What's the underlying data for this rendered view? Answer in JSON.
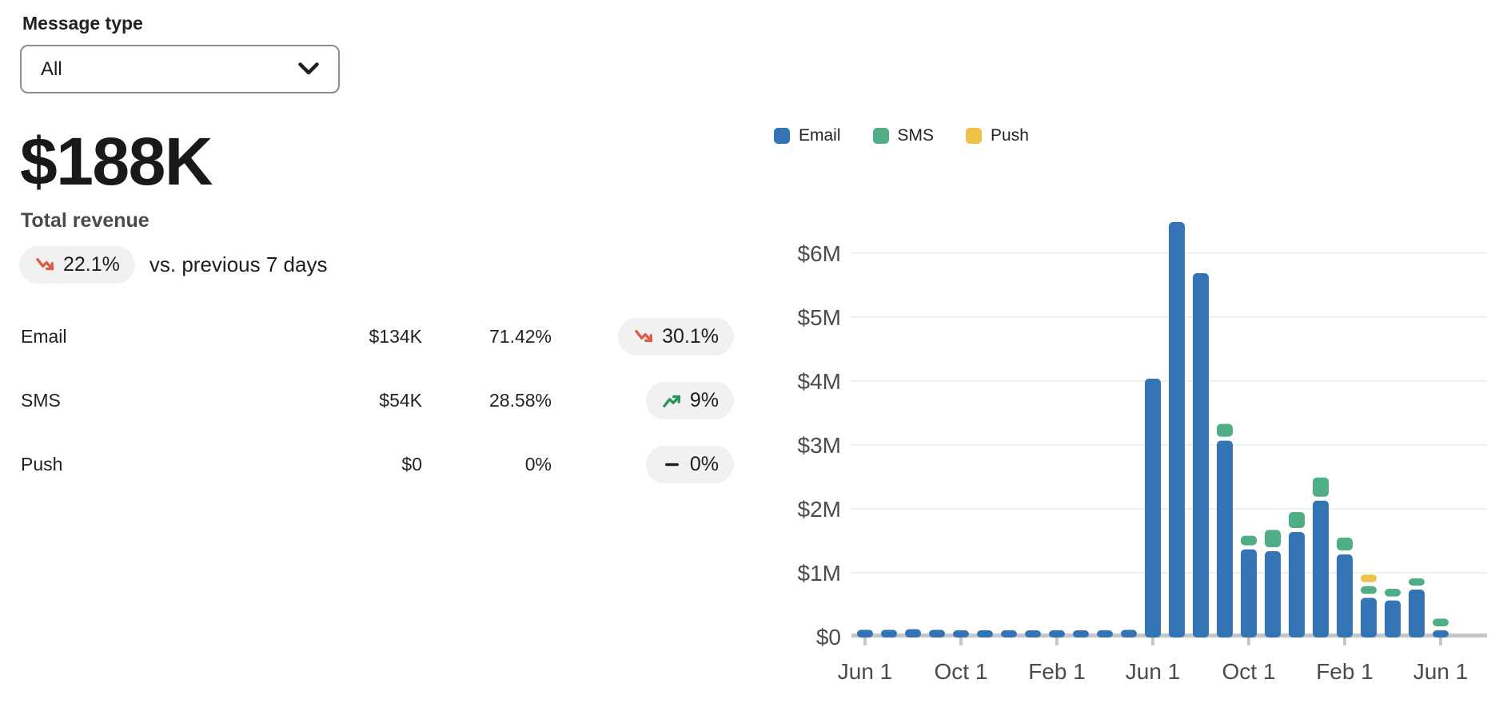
{
  "filter": {
    "label": "Message type",
    "value": "All"
  },
  "summary": {
    "total": "$188K",
    "total_label": "Total revenue",
    "change": {
      "value": "22.1%",
      "direction": "down",
      "suffix": "vs. previous 7 days"
    }
  },
  "breakdown": {
    "rows": [
      {
        "label": "Email",
        "value": "$134K",
        "share": "71.42%",
        "change": "30.1%",
        "direction": "down"
      },
      {
        "label": "SMS",
        "value": "$54K",
        "share": "28.58%",
        "change": "9%",
        "direction": "up"
      },
      {
        "label": "Push",
        "value": "$0",
        "share": "0%",
        "change": "0%",
        "direction": "flat"
      }
    ]
  },
  "colors": {
    "email": "#3574B4",
    "sms": "#4FAE85",
    "push": "#EFC14B",
    "down_arrow": "#DB5C49",
    "up_arrow": "#27965A",
    "flat_dash": "#1b1d1f",
    "pill_bg": "#f1f1f2",
    "axis_label": "#494c4f",
    "grid_line": "#ececee",
    "axis_band": "#c5c8ca"
  },
  "chart_data": {
    "type": "bar",
    "stacked": true,
    "title": "",
    "xlabel": "",
    "ylabel": "",
    "unit": "USD millions",
    "ylim": [
      0,
      6.6
    ],
    "grid": true,
    "legend_position": "top",
    "legend": [
      "Email",
      "SMS",
      "Push"
    ],
    "n_bars": 25,
    "y_tick_values": [
      0,
      1,
      2,
      3,
      4,
      5,
      6
    ],
    "y_tick_labels": [
      "$0",
      "$1M",
      "$2M",
      "$3M",
      "$4M",
      "$5M",
      "$6M"
    ],
    "x_tick_positions": [
      0,
      4,
      8,
      12,
      16,
      20,
      24
    ],
    "x_tick_labels": [
      "Jun 1",
      "Oct 1",
      "Feb 1",
      "Jun 1",
      "Oct 1",
      "Feb 1",
      "Jun 1"
    ],
    "series": [
      {
        "name": "Email",
        "color": "#3574B4",
        "values": [
          0.12,
          0.12,
          0.13,
          0.12,
          0.11,
          0.09,
          0.11,
          0.08,
          0.11,
          0.1,
          0.11,
          0.12,
          4.05,
          6.5,
          5.7,
          3.08,
          1.38,
          1.35,
          1.65,
          2.14,
          1.3,
          0.62,
          0.58,
          0.75,
          0.11
        ]
      },
      {
        "name": "SMS",
        "color": "#4FAE85",
        "values": [
          0,
          0,
          0,
          0,
          0,
          0,
          0,
          0,
          0,
          0,
          0,
          0,
          0,
          0,
          0,
          0.2,
          0.15,
          0.27,
          0.25,
          0.3,
          0.2,
          0.12,
          0.12,
          0.1,
          0.12
        ]
      },
      {
        "name": "Push",
        "color": "#EFC14B",
        "values": [
          0,
          0,
          0,
          0,
          0,
          0,
          0,
          0,
          0,
          0,
          0,
          0,
          0,
          0,
          0,
          0,
          0,
          0,
          0,
          0,
          0,
          0.12,
          0,
          0,
          0
        ]
      }
    ]
  }
}
